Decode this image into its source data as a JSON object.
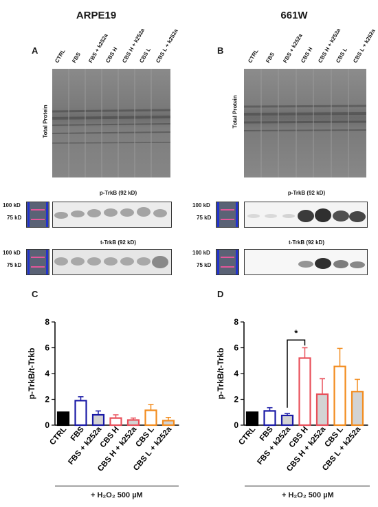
{
  "columns": {
    "left_title": "ARPE19",
    "right_title": "661W"
  },
  "panel_letters": {
    "a": "A",
    "b": "B",
    "c": "C",
    "d": "D"
  },
  "lanes": [
    "CTRL",
    "FBS",
    "FBS + k252a",
    "CBS H",
    "CBS H + k252a",
    "CBS L",
    "CBS L + k252a"
  ],
  "blots": {
    "total_protein_label": "Total Protein",
    "p_trkb_title": "p-TrkB (92 kD)",
    "t_trkb_title": "t-TrkB (92 kD)",
    "mw_100": "100 kD",
    "mw_75": "75 kD"
  },
  "treatment_label": "+ H₂O₂ 500 µM",
  "colors": {
    "ctrl": "#000000",
    "fbs": "#1a1aa6",
    "cbs_h": "#e8505b",
    "cbs_l": "#f28c1e",
    "k252a_fill": "#d3d3d3"
  },
  "chart_data": [
    {
      "panel": "C",
      "type": "bar",
      "ylabel": "p-TrkB/t-Trkb",
      "ylim": [
        0,
        8
      ],
      "yticks": [
        0,
        2,
        4,
        6,
        8
      ],
      "categories": [
        "CTRL",
        "FBS",
        "FBS + k252a",
        "CBS H",
        "CBS H + k252a",
        "CBS L",
        "CBS L + k252a"
      ],
      "values": [
        1.0,
        1.9,
        0.8,
        0.55,
        0.4,
        1.15,
        0.35
      ],
      "errors": [
        0,
        0.3,
        0.3,
        0.25,
        0.15,
        0.45,
        0.25
      ],
      "significance": []
    },
    {
      "panel": "D",
      "type": "bar",
      "ylabel": "p-TrkB/t-Trkb",
      "ylim": [
        0,
        8
      ],
      "yticks": [
        0,
        2,
        4,
        6,
        8
      ],
      "categories": [
        "CTRL",
        "FBS",
        "FBS + k252a",
        "CBS H",
        "CBS H + k252a",
        "CBS L",
        "CBS L + k252a"
      ],
      "values": [
        1.0,
        1.1,
        0.75,
        5.2,
        2.4,
        4.55,
        2.6
      ],
      "errors": [
        0,
        0.25,
        0.15,
        0.8,
        1.2,
        1.4,
        0.95
      ],
      "significance": [
        {
          "from": 2,
          "to": 3,
          "label": "*"
        }
      ]
    }
  ]
}
